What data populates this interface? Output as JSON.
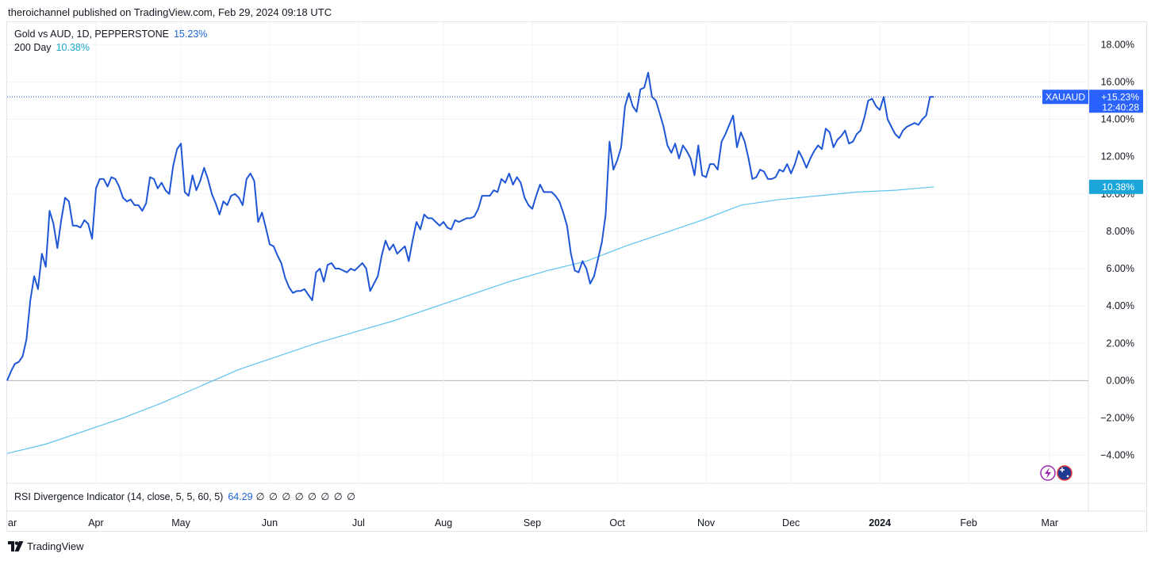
{
  "header": {
    "published": "theroichannel published on TradingView.com, Feb 29, 2024 09:18 UTC"
  },
  "legend": {
    "series1_label": "Gold vs AUD, 1D, PEPPERSTONE",
    "series1_value": "15.23%",
    "series2_label": "200 Day",
    "series2_value": "10.38%"
  },
  "indicator": {
    "label": "RSI Divergence Indicator (14, close, 5, 5, 60, 5)",
    "value": "64.29",
    "na_values": "∅ ∅ ∅ ∅ ∅ ∅ ∅ ∅"
  },
  "price_tag": {
    "symbol": "XAUAUD",
    "value": "+15.23%",
    "countdown": "12:40:28"
  },
  "ma_tag": {
    "value": "10.38%"
  },
  "footer": {
    "brand": "TradingView"
  },
  "colors": {
    "main_line": "#1e56d6",
    "ma_line": "#5fc3ee",
    "tag_bg": "#2962ff",
    "ma_tag_bg": "#1ba6d9"
  },
  "icons": [
    "lightning-icon",
    "australia-flag-icon"
  ],
  "chart_data": {
    "type": "line",
    "y_unit": "%",
    "ylim": [
      -5.5,
      19.2
    ],
    "y_ticks": [
      18,
      16,
      14,
      12,
      10,
      8,
      6,
      4,
      2,
      0,
      -2,
      -4
    ],
    "y_tick_labels": [
      "18.00%",
      "16.00%",
      "14.00%",
      "12.00%",
      "10.00%",
      "8.00%",
      "6.00%",
      "4.00%",
      "2.00%",
      "0.00%",
      "−2.00%",
      "−4.00%"
    ],
    "x_range_index": [
      0,
      280
    ],
    "x_ticks": [
      {
        "label": "ar",
        "index": 0
      },
      {
        "label": "Apr",
        "index": 23
      },
      {
        "label": "May",
        "index": 45
      },
      {
        "label": "Jun",
        "index": 68
      },
      {
        "label": "Jul",
        "index": 91
      },
      {
        "label": "Aug",
        "index": 113
      },
      {
        "label": "Sep",
        "index": 136
      },
      {
        "label": "Oct",
        "index": 158
      },
      {
        "label": "Nov",
        "index": 181
      },
      {
        "label": "Dec",
        "index": 203
      },
      {
        "label": "2024",
        "index": 226,
        "bold": true
      },
      {
        "label": "Feb",
        "index": 249
      },
      {
        "label": "Mar",
        "index": 270
      }
    ],
    "series": [
      {
        "name": "Gold vs AUD, 1D, PEPPERSTONE",
        "points": [
          [
            0,
            0
          ],
          [
            1,
            0.5
          ],
          [
            2,
            0.9
          ],
          [
            3,
            1.0
          ],
          [
            4,
            1.3
          ],
          [
            5,
            2.2
          ],
          [
            6,
            4.3
          ],
          [
            7,
            5.6
          ],
          [
            8,
            4.9
          ],
          [
            9,
            6.8
          ],
          [
            10,
            6.1
          ],
          [
            11,
            9.1
          ],
          [
            12,
            8.4
          ],
          [
            13,
            7.1
          ],
          [
            14,
            8.6
          ],
          [
            15,
            9.8
          ],
          [
            16,
            9.6
          ],
          [
            17,
            8.3
          ],
          [
            18,
            8.3
          ],
          [
            19,
            8.2
          ],
          [
            20,
            8.6
          ],
          [
            21,
            8.4
          ],
          [
            22,
            7.6
          ],
          [
            23,
            10.3
          ],
          [
            24,
            10.8
          ],
          [
            25,
            10.8
          ],
          [
            26,
            10.4
          ],
          [
            27,
            10.9
          ],
          [
            28,
            10.8
          ],
          [
            29,
            10.4
          ],
          [
            30,
            9.8
          ],
          [
            31,
            9.6
          ],
          [
            32,
            9.7
          ],
          [
            33,
            9.4
          ],
          [
            34,
            9.4
          ],
          [
            35,
            9.1
          ],
          [
            36,
            9.5
          ],
          [
            37,
            10.9
          ],
          [
            38,
            10.8
          ],
          [
            39,
            10.3
          ],
          [
            40,
            10.6
          ],
          [
            41,
            10.2
          ],
          [
            42,
            10.0
          ],
          [
            43,
            11.5
          ],
          [
            44,
            12.4
          ],
          [
            45,
            12.7
          ],
          [
            46,
            10.1
          ],
          [
            47,
            9.9
          ],
          [
            48,
            11.0
          ],
          [
            49,
            10.2
          ],
          [
            50,
            10.7
          ],
          [
            51,
            11.4
          ],
          [
            52,
            10.8
          ],
          [
            53,
            10.0
          ],
          [
            54,
            9.5
          ],
          [
            55,
            8.9
          ],
          [
            56,
            9.6
          ],
          [
            57,
            9.4
          ],
          [
            58,
            9.9
          ],
          [
            59,
            10.0
          ],
          [
            60,
            9.8
          ],
          [
            61,
            9.4
          ],
          [
            62,
            10.8
          ],
          [
            63,
            11.1
          ],
          [
            64,
            10.7
          ],
          [
            65,
            8.5
          ],
          [
            66,
            9.0
          ],
          [
            67,
            8.2
          ],
          [
            68,
            7.3
          ],
          [
            69,
            7.2
          ],
          [
            70,
            6.7
          ],
          [
            71,
            6.3
          ],
          [
            72,
            5.5
          ],
          [
            73,
            5.0
          ],
          [
            74,
            4.7
          ],
          [
            75,
            4.8
          ],
          [
            76,
            4.8
          ],
          [
            77,
            4.9
          ],
          [
            78,
            4.6
          ],
          [
            79,
            4.3
          ],
          [
            80,
            5.8
          ],
          [
            81,
            6.0
          ],
          [
            82,
            5.3
          ],
          [
            83,
            6.2
          ],
          [
            84,
            6.3
          ],
          [
            85,
            6.0
          ],
          [
            86,
            6.0
          ],
          [
            87,
            5.9
          ],
          [
            88,
            5.8
          ],
          [
            89,
            6.0
          ],
          [
            90,
            5.9
          ],
          [
            91,
            6.1
          ],
          [
            92,
            6.3
          ],
          [
            93,
            6.0
          ],
          [
            94,
            4.8
          ],
          [
            95,
            5.2
          ],
          [
            96,
            5.6
          ],
          [
            97,
            6.7
          ],
          [
            98,
            7.5
          ],
          [
            99,
            7.0
          ],
          [
            100,
            7.3
          ],
          [
            101,
            6.8
          ],
          [
            102,
            7.0
          ],
          [
            103,
            7.2
          ],
          [
            104,
            6.4
          ],
          [
            105,
            7.5
          ],
          [
            106,
            8.5
          ],
          [
            107,
            8.1
          ],
          [
            108,
            8.9
          ],
          [
            109,
            8.7
          ],
          [
            110,
            8.7
          ],
          [
            111,
            8.5
          ],
          [
            112,
            8.3
          ],
          [
            113,
            8.5
          ],
          [
            114,
            8.2
          ],
          [
            115,
            8.1
          ],
          [
            116,
            8.6
          ],
          [
            117,
            8.5
          ],
          [
            118,
            8.6
          ],
          [
            119,
            8.7
          ],
          [
            120,
            8.7
          ],
          [
            121,
            8.8
          ],
          [
            122,
            9.2
          ],
          [
            123,
            9.9
          ],
          [
            124,
            9.9
          ],
          [
            125,
            9.9
          ],
          [
            126,
            10.2
          ],
          [
            127,
            10.1
          ],
          [
            128,
            10.8
          ],
          [
            129,
            10.6
          ],
          [
            130,
            11.1
          ],
          [
            131,
            10.5
          ],
          [
            132,
            10.9
          ],
          [
            133,
            10.6
          ],
          [
            134,
            9.8
          ],
          [
            135,
            9.4
          ],
          [
            136,
            9.2
          ],
          [
            137,
            9.9
          ],
          [
            138,
            10.5
          ],
          [
            139,
            10.1
          ],
          [
            140,
            10.1
          ],
          [
            141,
            10.1
          ],
          [
            142,
            9.9
          ],
          [
            143,
            9.6
          ],
          [
            144,
            9.0
          ],
          [
            145,
            8.3
          ],
          [
            146,
            6.8
          ],
          [
            147,
            5.9
          ],
          [
            148,
            5.8
          ],
          [
            149,
            6.4
          ],
          [
            150,
            6.0
          ],
          [
            151,
            5.2
          ],
          [
            152,
            5.6
          ],
          [
            153,
            6.5
          ],
          [
            154,
            7.4
          ],
          [
            155,
            8.9
          ],
          [
            156,
            12.8
          ],
          [
            157,
            11.3
          ],
          [
            158,
            11.8
          ],
          [
            159,
            12.5
          ],
          [
            160,
            14.7
          ],
          [
            161,
            15.4
          ],
          [
            162,
            14.7
          ],
          [
            163,
            14.4
          ],
          [
            164,
            15.6
          ],
          [
            165,
            15.7
          ],
          [
            166,
            16.5
          ],
          [
            167,
            15.2
          ],
          [
            168,
            15.0
          ],
          [
            169,
            14.3
          ],
          [
            170,
            13.6
          ],
          [
            171,
            12.6
          ],
          [
            172,
            12.2
          ],
          [
            173,
            12.7
          ],
          [
            174,
            11.9
          ],
          [
            175,
            12.6
          ],
          [
            176,
            12.3
          ],
          [
            177,
            11.9
          ],
          [
            178,
            11.0
          ],
          [
            179,
            12.6
          ],
          [
            180,
            11.0
          ],
          [
            181,
            10.9
          ],
          [
            182,
            11.6
          ],
          [
            183,
            11.6
          ],
          [
            184,
            11.3
          ],
          [
            185,
            12.8
          ],
          [
            186,
            13.2
          ],
          [
            187,
            13.7
          ],
          [
            188,
            14.2
          ],
          [
            189,
            12.5
          ],
          [
            190,
            13.3
          ],
          [
            191,
            12.8
          ],
          [
            192,
            11.9
          ],
          [
            193,
            10.8
          ],
          [
            194,
            10.9
          ],
          [
            195,
            11.3
          ],
          [
            196,
            11.2
          ],
          [
            197,
            10.8
          ],
          [
            198,
            10.8
          ],
          [
            199,
            10.9
          ],
          [
            200,
            11.3
          ],
          [
            201,
            11.2
          ],
          [
            202,
            11.6
          ],
          [
            203,
            11.1
          ],
          [
            204,
            11.6
          ],
          [
            205,
            12.3
          ],
          [
            206,
            11.9
          ],
          [
            207,
            11.4
          ],
          [
            208,
            11.9
          ],
          [
            209,
            12.3
          ],
          [
            210,
            12.6
          ],
          [
            211,
            12.4
          ],
          [
            212,
            13.5
          ],
          [
            213,
            13.3
          ],
          [
            214,
            12.5
          ],
          [
            215,
            12.9
          ],
          [
            216,
            13.1
          ],
          [
            217,
            13.4
          ],
          [
            218,
            12.7
          ],
          [
            219,
            12.8
          ],
          [
            220,
            13.2
          ],
          [
            221,
            13.4
          ],
          [
            222,
            14.1
          ],
          [
            223,
            15.0
          ],
          [
            224,
            15.1
          ],
          [
            225,
            14.7
          ],
          [
            226,
            14.5
          ],
          [
            227,
            15.2
          ],
          [
            228,
            14.0
          ],
          [
            229,
            13.6
          ],
          [
            230,
            13.2
          ],
          [
            231,
            13.0
          ],
          [
            232,
            13.4
          ],
          [
            233,
            13.6
          ],
          [
            234,
            13.7
          ],
          [
            235,
            13.8
          ],
          [
            236,
            13.7
          ],
          [
            237,
            14.0
          ],
          [
            238,
            14.2
          ],
          [
            239,
            15.2
          ],
          [
            240,
            15.2
          ]
        ]
      },
      {
        "name": "200 Day",
        "points": [
          [
            0,
            -3.9
          ],
          [
            10,
            -3.4
          ],
          [
            20,
            -2.7
          ],
          [
            30,
            -2.0
          ],
          [
            40,
            -1.2
          ],
          [
            50,
            -0.3
          ],
          [
            60,
            0.6
          ],
          [
            70,
            1.3
          ],
          [
            80,
            2.0
          ],
          [
            90,
            2.6
          ],
          [
            100,
            3.2
          ],
          [
            110,
            3.9
          ],
          [
            120,
            4.6
          ],
          [
            130,
            5.3
          ],
          [
            140,
            5.9
          ],
          [
            150,
            6.4
          ],
          [
            160,
            7.2
          ],
          [
            170,
            7.9
          ],
          [
            180,
            8.6
          ],
          [
            190,
            9.4
          ],
          [
            200,
            9.7
          ],
          [
            210,
            9.9
          ],
          [
            220,
            10.1
          ],
          [
            230,
            10.2
          ],
          [
            240,
            10.38
          ]
        ]
      }
    ]
  }
}
